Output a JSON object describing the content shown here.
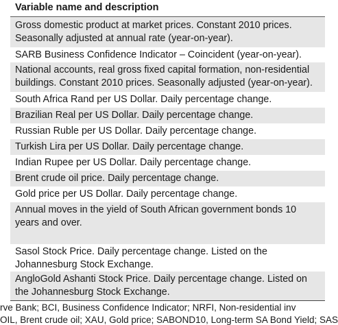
{
  "table": {
    "header": "Variable name and description",
    "rows": [
      "Gross domestic product at market prices. Constant 2010 prices. Seasonally adjusted at annual rate (year-on-year).",
      "SARB Business Confidence Indicator – Coincident (year-on-year).",
      "National accounts, real gross fixed capital formation, non-residential buildings. Constant 2010 prices. Seasonally adjusted (year-on-year).",
      "South Africa Rand per US Dollar. Daily percentage change.",
      "Brazilian Real per US Dollar. Daily percentage change.",
      "Russian Ruble per US Dollar. Daily percentage change.",
      "Turkish Lira per US Dollar. Daily percentage change.",
      "Indian Rupee per US Dollar. Daily percentage change.",
      "Brent crude oil price. Daily percentage change.",
      "Gold price per US Dollar. Daily percentage change.",
      "Annual moves in the yield of South African government bonds 10 years and over.",
      "Sasol Stock Price. Daily percentage change. Listed on the Johannesburg Stock Exchange.",
      "AngloGold Ashanti Stock Price. Daily percentage change. Listed on the Johannesburg Stock Exchange."
    ]
  },
  "footnote": [
    "rve Bank; BCI, Business Confidence Indicator; NRFI, Non-residential inv",
    "OIL, Brent crude oil; XAU, Gold price; SABOND10, Long-term SA Bond Yield; SAS"
  ]
}
